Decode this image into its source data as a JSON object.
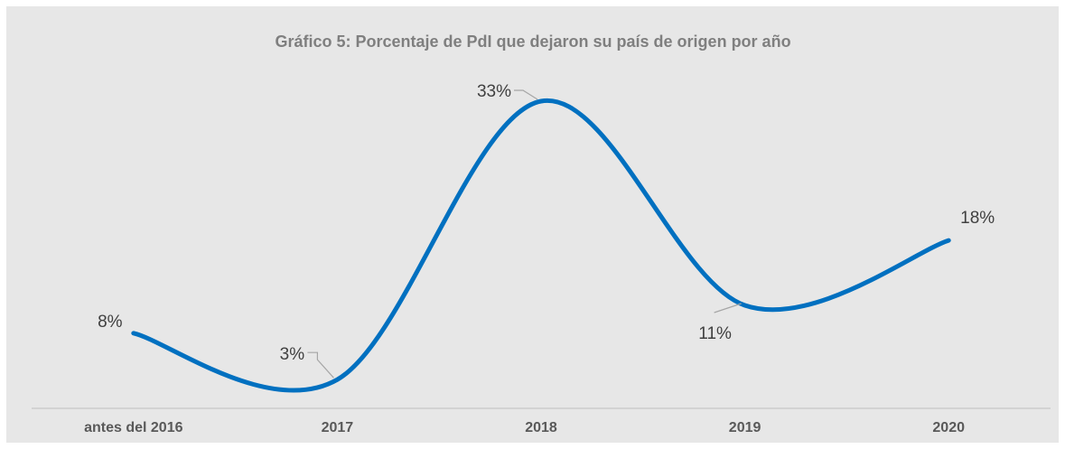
{
  "chart_data": {
    "type": "line",
    "title": "Gráfico 5: Porcentaje de PdI que dejaron su país de origen por año",
    "categories": [
      "antes del 2016",
      "2017",
      "2018",
      "2019",
      "2020"
    ],
    "series": [
      {
        "name": "PdI",
        "color": "#0070c0",
        "values": [
          8,
          3,
          33,
          11,
          18
        ],
        "value_labels": [
          "8%",
          "3%",
          "33%",
          "11%",
          "18%"
        ]
      }
    ]
  }
}
